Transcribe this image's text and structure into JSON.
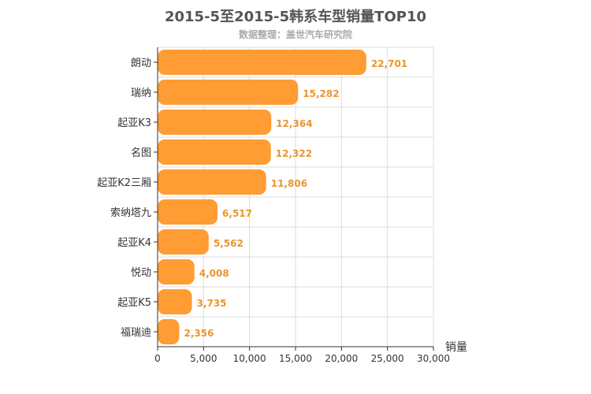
{
  "title": "2015-5至2015-5韩系车型销量TOP10",
  "subtitle": "数据整理：盖世汽车研究院",
  "colors": {
    "bar": "#ff9c33",
    "value_label": "#e8962f",
    "grid": "#dddddd",
    "axis": "#333333"
  },
  "chart_data": {
    "type": "bar",
    "orientation": "horizontal",
    "title": "2015-5至2015-5韩系车型销量TOP10",
    "subtitle": "数据整理：盖世汽车研究院",
    "categories": [
      "朗动",
      "瑞纳",
      "起亚K3",
      "名图",
      "起亚K2三厢",
      "索纳塔九",
      "起亚K4",
      "悦动",
      "起亚K5",
      "福瑞迪"
    ],
    "values": [
      22701,
      15282,
      12364,
      12322,
      11806,
      6517,
      5562,
      4008,
      3735,
      2356
    ],
    "value_labels": [
      "22,701",
      "15,282",
      "12,364",
      "12,322",
      "11,806",
      "6,517",
      "5,562",
      "4,008",
      "3,735",
      "2,356"
    ],
    "xlabel": "销量",
    "ylabel": "",
    "xlim": [
      0,
      30000
    ],
    "xticks": [
      0,
      5000,
      10000,
      15000,
      20000,
      25000,
      30000
    ],
    "xtick_labels": [
      "0",
      "5,000",
      "10,000",
      "15,000",
      "20,000",
      "25,000",
      "30,000"
    ],
    "grid": true
  }
}
